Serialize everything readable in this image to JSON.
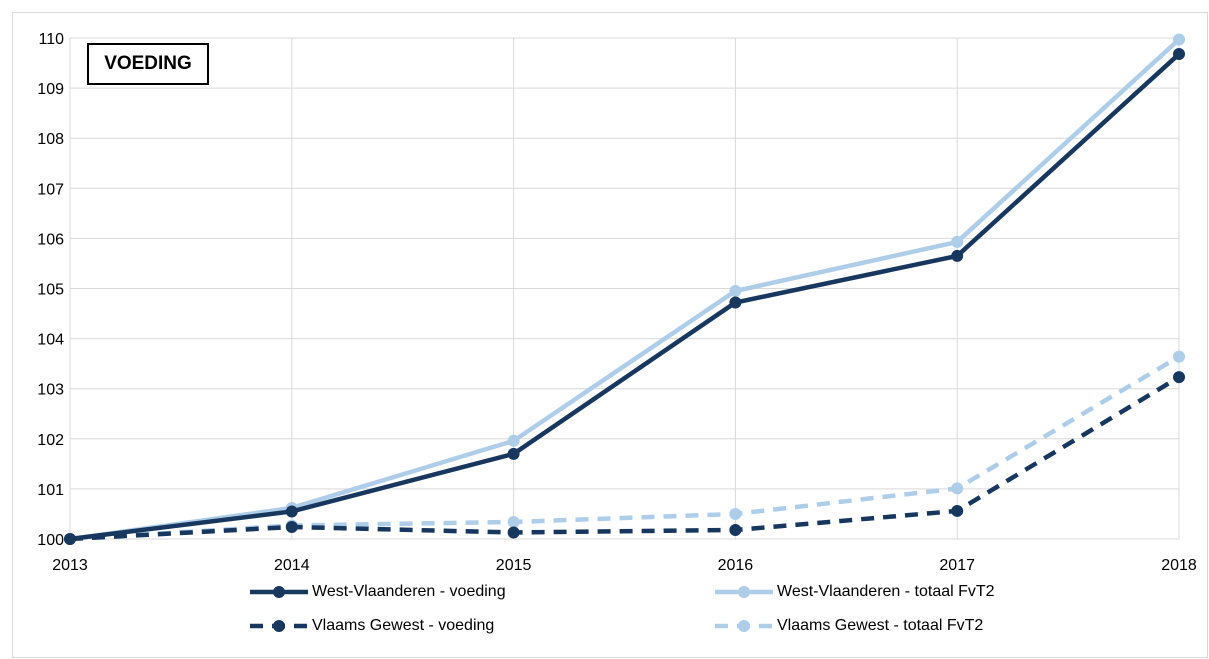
{
  "chart_data": {
    "type": "line",
    "title": "VOEDING",
    "x": [
      "2013",
      "2014",
      "2015",
      "2016",
      "2017",
      "2018"
    ],
    "ylim": [
      100,
      110
    ],
    "yticks": [
      "100",
      "101",
      "102",
      "103",
      "104",
      "105",
      "106",
      "107",
      "108",
      "109",
      "110"
    ],
    "grid": true,
    "legend_position": "bottom",
    "series": [
      {
        "name": "West-Vlaanderen - voeding",
        "values": [
          100.0,
          100.55,
          101.7,
          104.72,
          105.65,
          109.68
        ],
        "color": "#17375e",
        "dash": "solid"
      },
      {
        "name": "West-Vlaanderen - totaal FvT2",
        "values": [
          100.0,
          100.62,
          101.96,
          104.95,
          105.93,
          109.97
        ],
        "color": "#aecde9",
        "dash": "solid"
      },
      {
        "name": "Vlaams Gewest - voeding",
        "values": [
          100.0,
          100.24,
          100.13,
          100.18,
          100.56,
          103.23
        ],
        "color": "#17375e",
        "dash": "dashed"
      },
      {
        "name": "Vlaams Gewest - totaal FvT2",
        "values": [
          100.0,
          100.27,
          100.34,
          100.5,
          101.01,
          103.64
        ],
        "color": "#aecde9",
        "dash": "dashed"
      }
    ]
  }
}
